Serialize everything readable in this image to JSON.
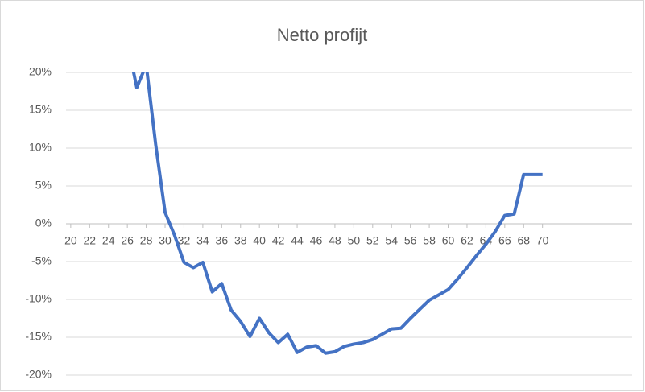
{
  "chart_data": {
    "type": "line",
    "title": "Netto profijt",
    "x": [
      26,
      27,
      28,
      29,
      30,
      31,
      32,
      33,
      34,
      35,
      36,
      37,
      38,
      39,
      40,
      41,
      42,
      43,
      44,
      45,
      46,
      47,
      48,
      49,
      50,
      51,
      52,
      53,
      54,
      55,
      56,
      57,
      58,
      59,
      60,
      61,
      62,
      63,
      64,
      65,
      66,
      67,
      68,
      69,
      70
    ],
    "series": [
      {
        "name": "Netto profijt",
        "color": "#4472c4",
        "values": [
          24,
          18,
          21,
          10.5,
          1.5,
          -1.5,
          -5.1,
          -5.8,
          -5.1,
          -9,
          -7.9,
          -11.4,
          -12.9,
          -14.9,
          -12.5,
          -14.4,
          -15.7,
          -14.6,
          -17,
          -16.3,
          -16.1,
          -17.1,
          -16.9,
          -16.2,
          -15.9,
          -15.7,
          -15.3,
          -14.6,
          -13.9,
          -13.8,
          -12.5,
          -11.3,
          -10.1,
          -9.4,
          -8.7,
          -7.3,
          -5.8,
          -4.2,
          -2.7,
          -1,
          1.1,
          1.3,
          6.5,
          6.5,
          6.5
        ]
      }
    ],
    "xlim": [
      19.5,
      79.5
    ],
    "xticks": [
      20,
      22,
      24,
      26,
      28,
      30,
      32,
      34,
      36,
      38,
      40,
      42,
      44,
      46,
      48,
      50,
      52,
      54,
      56,
      58,
      60,
      62,
      64,
      66,
      68,
      70
    ],
    "ylim": [
      -20,
      20
    ],
    "yticks": [
      {
        "value": -20,
        "label": "-20%"
      },
      {
        "value": -15,
        "label": "-15%"
      },
      {
        "value": -10,
        "label": "-10%"
      },
      {
        "value": -5,
        "label": "-5%"
      },
      {
        "value": 0,
        "label": "0%"
      },
      {
        "value": 5,
        "label": "5%"
      },
      {
        "value": 10,
        "label": "10%"
      },
      {
        "value": 15,
        "label": "15%"
      },
      {
        "value": 20,
        "label": "20%"
      }
    ],
    "grid": true
  }
}
